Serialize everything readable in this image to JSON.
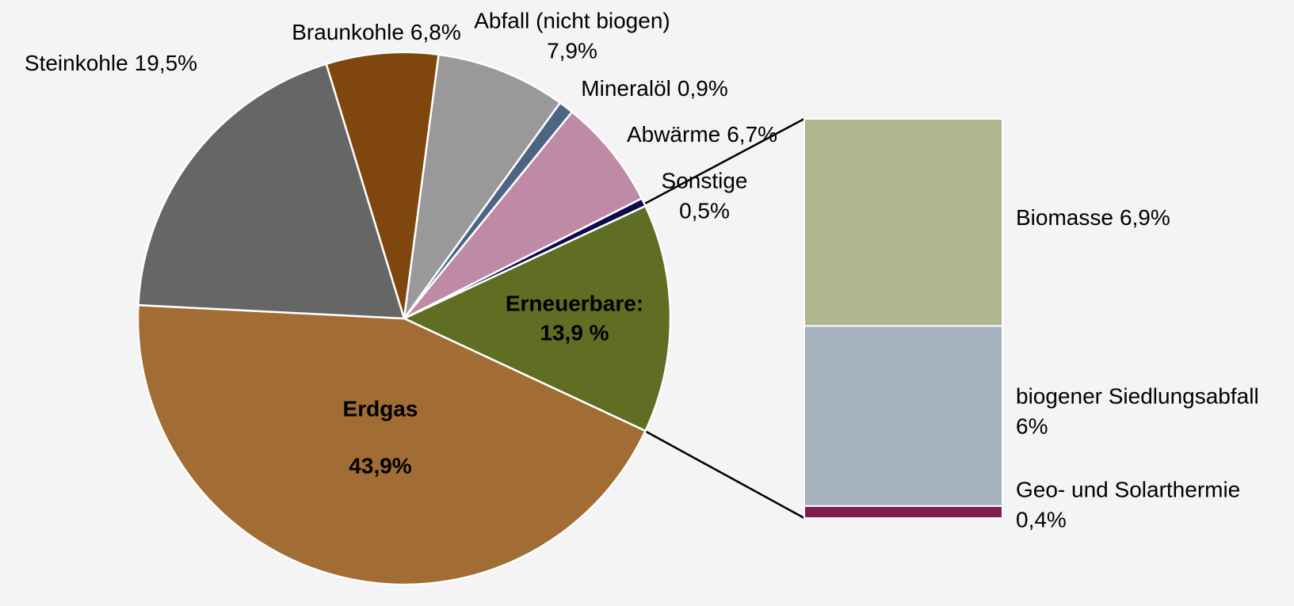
{
  "chart_data": [
    {
      "type": "pie",
      "categories": [
        "Erneuerbare:",
        "Erdgas",
        "Steinkohle",
        "Braunkohle",
        "Abfall (nicht biogen)",
        "Mineralöl",
        "Abwärme",
        "Sonstige"
      ],
      "values": [
        13.9,
        43.9,
        19.5,
        6.8,
        7.9,
        0.9,
        6.7,
        0.5
      ],
      "value_labels": [
        "13,9 %",
        "43,9%",
        "19,5%",
        "6,8%",
        "7,9%",
        "0,9%",
        "6,7%",
        "0,5%"
      ],
      "colors": [
        "#5f6e23",
        "#a26c35",
        "#666666",
        "#7f470d",
        "#999999",
        "#4d6482",
        "#bf8aa5",
        "#0d0d4d"
      ]
    },
    {
      "type": "bar",
      "categories": [
        "Biomasse",
        "biogener Siedlungsabfall",
        "Geo- und Solarthermie"
      ],
      "values": [
        6.9,
        6,
        0.4
      ],
      "value_labels": [
        "6,9%",
        "6%",
        "0,4%"
      ],
      "colors": [
        "#b0b58e",
        "#a6b2c0",
        "#7f1d4d"
      ]
    }
  ]
}
